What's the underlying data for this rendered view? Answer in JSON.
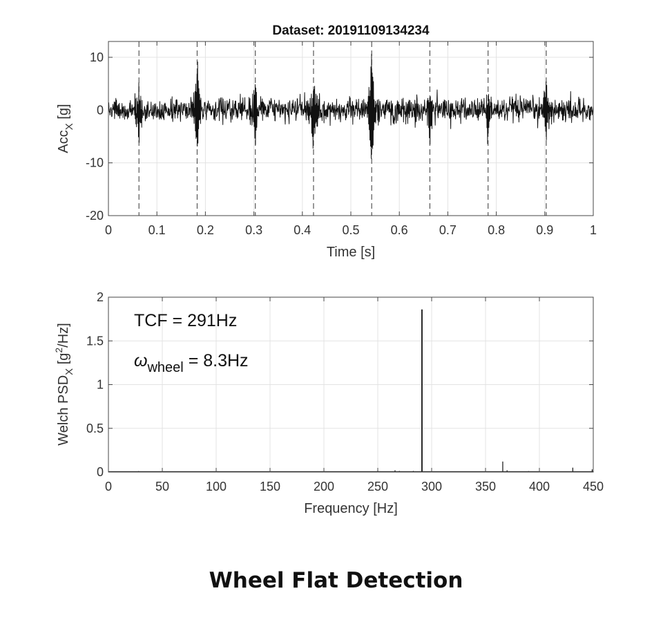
{
  "caption": "Wheel Flat Detection",
  "chart_data": [
    {
      "type": "line",
      "title": "Dataset: 20191109134234",
      "xlabel": "Time [s]",
      "ylabel_main": "Acc",
      "ylabel_sub": "X",
      "ylabel_unit": " [g]",
      "xlim": [
        0,
        1
      ],
      "ylim": [
        -20,
        13
      ],
      "xticks": [
        0,
        0.1,
        0.2,
        0.3,
        0.4,
        0.5,
        0.6,
        0.7,
        0.8,
        0.9,
        1
      ],
      "xtick_labels": [
        "0",
        "0.1",
        "0.2",
        "0.3",
        "0.4",
        "0.5",
        "0.6",
        "0.7",
        "0.8",
        "0.9",
        "1"
      ],
      "yticks": [
        -20,
        -10,
        0,
        10
      ],
      "ytick_labels": [
        "-20",
        "-10",
        "0",
        "10"
      ],
      "grid": true,
      "noise_amplitude": 2.5,
      "markers_x": [
        0.063,
        0.183,
        0.303,
        0.423,
        0.543,
        0.663,
        0.783,
        0.903
      ],
      "spikes": [
        {
          "t": 0.063,
          "max": 4.5,
          "min": -7
        },
        {
          "t": 0.183,
          "max": 10.5,
          "min": -9
        },
        {
          "t": 0.303,
          "max": 6,
          "min": -8
        },
        {
          "t": 0.423,
          "max": 6,
          "min": -9
        },
        {
          "t": 0.543,
          "max": 12.5,
          "min": -14
        },
        {
          "t": 0.663,
          "max": 3.5,
          "min": -6
        },
        {
          "t": 0.783,
          "max": 4.5,
          "min": -7
        },
        {
          "t": 0.903,
          "max": 5,
          "min": -6
        }
      ]
    },
    {
      "type": "line",
      "xlabel": "Frequency [Hz]",
      "ylabel_main": "Welch PSD",
      "ylabel_sub": "X",
      "ylabel_unit_open": " [g",
      "ylabel_sup": "2",
      "ylabel_unit_close": "/Hz]",
      "xlim": [
        0,
        450
      ],
      "ylim": [
        0,
        2
      ],
      "xticks": [
        0,
        50,
        100,
        150,
        200,
        250,
        300,
        350,
        400,
        450
      ],
      "xtick_labels": [
        "0",
        "50",
        "100",
        "150",
        "200",
        "250",
        "300",
        "350",
        "400",
        "450"
      ],
      "yticks": [
        0,
        0.5,
        1,
        1.5,
        2
      ],
      "ytick_labels": [
        "0",
        "0.5",
        "1",
        "1.5",
        "2"
      ],
      "grid": true,
      "peaks": [
        {
          "f": 28,
          "p": 0.01
        },
        {
          "f": 250,
          "p": 0.015
        },
        {
          "f": 266,
          "p": 0.02
        },
        {
          "f": 270,
          "p": 0.012
        },
        {
          "f": 283,
          "p": 0.012
        },
        {
          "f": 291,
          "p": 1.86
        },
        {
          "f": 300,
          "p": 0.01
        },
        {
          "f": 366,
          "p": 0.12
        },
        {
          "f": 370,
          "p": 0.02
        },
        {
          "f": 390,
          "p": 0.01
        },
        {
          "f": 431,
          "p": 0.05
        },
        {
          "f": 449,
          "p": 0.03
        }
      ],
      "annotations": {
        "tcf": "TCF = 291Hz",
        "omega_symbol": "ω",
        "omega_sub": "wheel",
        "omega_value": " = 8.3Hz"
      }
    }
  ]
}
